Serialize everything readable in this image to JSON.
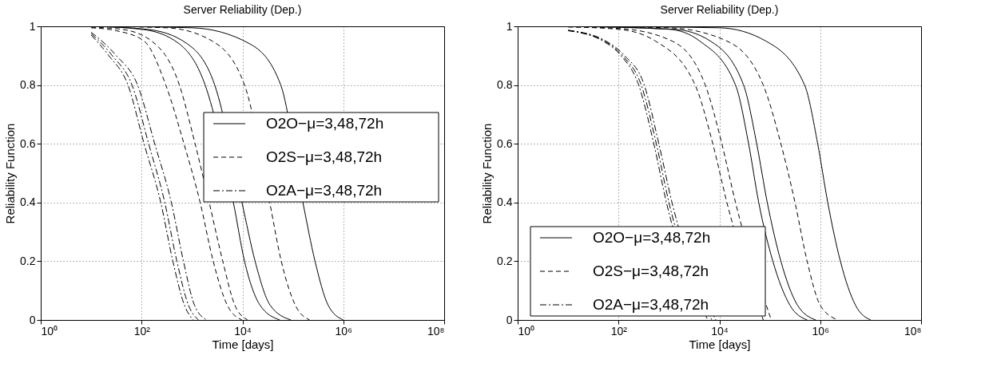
{
  "chart_data": [
    {
      "type": "line",
      "title": "Server Reliability (Dep.)",
      "xlabel": "Time [days]",
      "ylabel": "Reliability Function",
      "log": "x",
      "grid": true,
      "legend": "right",
      "xlim": [
        1,
        100000000.0
      ],
      "ylim": [
        0,
        1
      ],
      "xticks": [
        {
          "value": 1,
          "label": "10⁰"
        },
        {
          "value": 100,
          "label": "10²"
        },
        {
          "value": 10000,
          "label": "10⁴"
        },
        {
          "value": 1000000,
          "label": "10⁶"
        },
        {
          "value": 100000000,
          "label": "10⁸"
        }
      ],
      "yticks": [
        0,
        0.2,
        0.4,
        0.6,
        0.8,
        1
      ],
      "series": [
        {
          "name": "O2O−μ=3,48,72h",
          "color": "#000000",
          "line_style": "solid",
          "x": [
            10.0,
            100.0,
            562.0,
            1820.0,
            3470.0,
            6610.0,
            11000.0,
            22400.0,
            55000.0
          ],
          "values": [
            1,
            0.99,
            0.94,
            0.8,
            null,
            0.4,
            0.2,
            0.05,
            0
          ]
        },
        {
          "color": "#000000",
          "line_style": "solid",
          "x": [
            10.0,
            126.0,
            813.0,
            2820.0,
            5250.0,
            9770.0,
            17800.0,
            35500.0,
            91200.0
          ],
          "values": [
            1,
            0.99,
            0.94,
            0.8,
            null,
            0.4,
            0.2,
            0.05,
            0
          ]
        },
        {
          "color": "#000000",
          "line_style": "solid",
          "x": [
            10.0,
            1000.0,
            14100.0,
            57500.0,
            100000.0,
            158000.0,
            275000.0,
            501000.0,
            1000000.0
          ],
          "values": [
            1,
            0.995,
            0.94,
            0.8,
            null,
            0.4,
            0.2,
            0.05,
            0
          ]
        },
        {
          "name": "O2S−μ=3,48,72h",
          "color": "#000000",
          "line_style": "dashed",
          "x": [
            10.0,
            31.6,
            112.0,
            302.0,
            692.0,
            1450.0,
            2630.0,
            5010.0,
            9770.0
          ],
          "values": [
            0.995,
            0.985,
            0.95,
            0.8,
            0.6,
            0.4,
            0.2,
            0.05,
            0
          ]
        },
        {
          "color": "#000000",
          "line_style": "dashed",
          "x": [
            10.0,
            39.8,
            158.0,
            562.0,
            1150.0,
            2190.0,
            4070.0,
            7080.0,
            12600.0
          ],
          "values": [
            0.997,
            0.99,
            0.95,
            0.8,
            0.6,
            0.4,
            0.2,
            0.05,
            0
          ]
        },
        {
          "color": "#000000",
          "line_style": "dashed",
          "x": [
            10.0,
            316.0,
            2510.0,
            11000.0,
            20000.0,
            34700.0,
            58900.0,
            112000.0,
            214000.0
          ],
          "values": [
            1,
            0.995,
            0.95,
            0.8,
            null,
            0.4,
            0.2,
            0.05,
            0
          ]
        },
        {
          "name": "O2A−μ=3,48,72h",
          "color": "#000000",
          "line_style": "dashdot",
          "x": [
            10.0,
            22.4,
            53.7,
            112.0,
            240.0,
            417.0,
            708.0,
            1050.0
          ],
          "values": [
            0.97,
            0.9,
            0.8,
            0.6,
            0.4,
            0.2,
            0.05,
            0
          ]
        },
        {
          "color": "#000000",
          "line_style": "dashdot",
          "x": [
            10.0,
            26.3,
            64.6,
            138.0,
            288.0,
            501.0,
            851.0,
            1350.0
          ],
          "values": [
            0.975,
            0.9,
            0.8,
            0.6,
            0.4,
            0.2,
            0.05,
            0
          ]
        },
        {
          "color": "#000000",
          "line_style": "dashdot",
          "x": [
            10.0,
            31.6,
            83.2,
            182.0,
            389.0,
            676.0,
            1120.0,
            1950.0
          ],
          "values": [
            0.98,
            0.9,
            0.8,
            0.6,
            0.4,
            0.2,
            0.05,
            0
          ]
        }
      ]
    },
    {
      "type": "line",
      "title": "Server Reliability (Dep.)",
      "xlabel": "Time [days]",
      "ylabel": "Reliability Function",
      "log": "x",
      "grid": true,
      "legend": "bottom left",
      "xlim": [
        1,
        100000000.0
      ],
      "ylim": [
        0,
        1
      ],
      "xticks": [
        {
          "value": 1,
          "label": "10⁰"
        },
        {
          "value": 100,
          "label": "10²"
        },
        {
          "value": 10000,
          "label": "10⁴"
        },
        {
          "value": 1000000,
          "label": "10⁶"
        },
        {
          "value": 100000000,
          "label": "10⁸"
        }
      ],
      "yticks": [
        0,
        0.2,
        0.4,
        0.6,
        0.8,
        1
      ],
      "series": [
        {
          "name": "O2O−μ=3,48,72h",
          "color": "#000000",
          "line_style": "solid",
          "x": [
            10.0,
            1000.0,
            4070.0,
            20900.0,
            38000.0,
            60300.0,
            115000.0,
            251000.0,
            550000.0
          ],
          "values": [
            1,
            0.99,
            0.95,
            0.8,
            0.6,
            0.4,
            0.2,
            0.05,
            0
          ]
        },
        {
          "color": "#000000",
          "line_style": "solid",
          "x": [
            10.0,
            1260.0,
            6610.0,
            30200.0,
            55000.0,
            89100.0,
            166000.0,
            355000.0,
            813000.0
          ],
          "values": [
            1,
            0.99,
            0.95,
            0.8,
            0.6,
            0.4,
            0.2,
            0.05,
            0
          ]
        },
        {
          "color": "#000000",
          "line_style": "solid",
          "x": [
            10.0,
            10000.0,
            83200.0,
            490000.0,
            891000.0,
            1410000.0,
            2510000.0,
            5010000.0,
            10000000.0
          ],
          "values": [
            1,
            0.995,
            0.95,
            0.8,
            0.6,
            0.4,
            0.2,
            0.05,
            0
          ]
        },
        {
          "name": "O2S−μ=3,48,72h",
          "color": "#000000",
          "line_style": "dashed",
          "x": [
            10.0,
            100.0,
            537.0,
            3310.0,
            7410.0,
            14100.0,
            28200.0,
            44700.0,
            74100.0
          ],
          "values": [
            0.998,
            0.99,
            0.95,
            0.8,
            0.6,
            0.4,
            null,
            null,
            0
          ]
        },
        {
          "color": "#000000",
          "line_style": "dashed",
          "x": [
            10.0,
            100.0,
            1150.0,
            5250.0,
            11200.0,
            20900.0,
            41700.0,
            66100.0,
            107000.0
          ],
          "values": [
            0.998,
            0.993,
            0.95,
            0.8,
            0.6,
            0.4,
            null,
            null,
            0
          ]
        },
        {
          "color": "#000000",
          "line_style": "dashed",
          "x": [
            10.0,
            1000.0,
            14100.0,
            74100.0,
            166000.0,
            316000.0,
            550000.0,
            1000000.0,
            2240000.0
          ],
          "values": [
            1,
            0.995,
            0.95,
            0.8,
            0.6,
            0.4,
            0.2,
            0.05,
            0
          ]
        },
        {
          "name": "O2A−μ=3,48,72h",
          "color": "#000000",
          "line_style": "dashdot",
          "x": [
            10.0,
            49.0,
            112.0,
            251.0,
            501.0,
            891.0,
            1550.0,
            2820.0,
            5890.0
          ],
          "values": [
            0.985,
            0.95,
            0.9,
            0.8,
            0.6,
            0.4,
            null,
            null,
            0
          ]
        },
        {
          "color": "#000000",
          "line_style": "dashdot",
          "x": [
            10.0,
            52.5,
            120.0,
            282.0,
            562.0,
            1000.0,
            1780.0,
            3160.0,
            7080.0
          ],
          "values": [
            0.986,
            0.95,
            0.9,
            0.8,
            0.6,
            0.4,
            null,
            null,
            0
          ]
        },
        {
          "color": "#000000",
          "line_style": "dashdot",
          "x": [
            10.0,
            56.2,
            132.0,
            324.0,
            631.0,
            1150.0,
            2000.0,
            3550.0,
            8510.0
          ],
          "values": [
            0.987,
            0.95,
            0.9,
            0.8,
            0.6,
            0.4,
            null,
            null,
            0
          ]
        }
      ]
    }
  ]
}
